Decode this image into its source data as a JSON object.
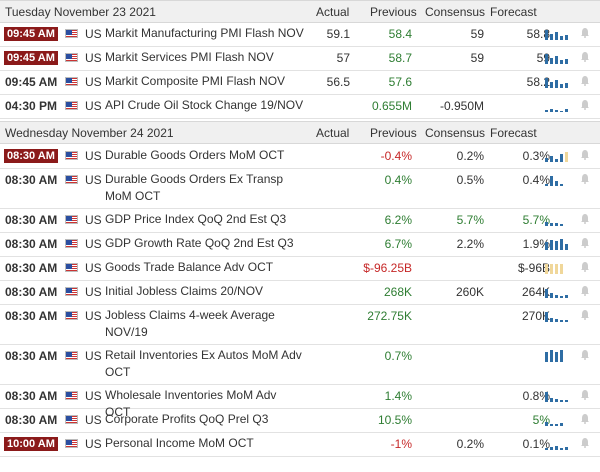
{
  "columns": {
    "actual": "Actual",
    "previous": "Previous",
    "consensus": "Consensus",
    "forecast": "Forecast"
  },
  "days": [
    {
      "date": "Tuesday November 23 2021",
      "rows": [
        {
          "time": "09:45 AM",
          "highlight": true,
          "country": "US",
          "event": "Markit Manufacturing PMI Flash NOV",
          "actual": "59.1",
          "previous": "58.4",
          "previous_color": "green",
          "consensus": "59",
          "forecast": "58.8",
          "icon": "bar-chart-icon"
        },
        {
          "time": "09:45 AM",
          "highlight": true,
          "country": "US",
          "event": "Markit Services PMI Flash NOV",
          "actual": "57",
          "previous": "58.7",
          "previous_color": "green",
          "consensus": "59",
          "forecast": "59",
          "icon": "bar-chart-icon"
        },
        {
          "time": "09:45 AM",
          "highlight": false,
          "country": "US",
          "event": "Markit Composite PMI Flash NOV",
          "actual": "56.5",
          "previous": "57.6",
          "previous_color": "green",
          "consensus": "",
          "forecast": "58.2",
          "icon": "bar-chart-icon"
        },
        {
          "time": "04:30 PM",
          "highlight": false,
          "country": "US",
          "event": "API Crude Oil Stock Change 19/NOV",
          "actual": "",
          "previous": "0.655M",
          "previous_color": "green",
          "consensus": "-0.950M",
          "forecast": "",
          "icon": "bar-chart-icon"
        }
      ]
    },
    {
      "date": "Wednesday November 24 2021",
      "rows": [
        {
          "time": "08:30 AM",
          "highlight": true,
          "country": "US",
          "event": "Durable Goods Orders MoM OCT",
          "actual": "",
          "previous": "-0.4%",
          "previous_color": "red",
          "consensus": "0.2%",
          "forecast": "0.3%",
          "icon": "bar-chart-icon"
        },
        {
          "time": "08:30 AM",
          "highlight": false,
          "country": "US",
          "event": "Durable Goods Orders Ex Transp MoM OCT",
          "actual": "",
          "previous": "0.4%",
          "previous_color": "green",
          "consensus": "0.5%",
          "forecast": "0.4%",
          "icon": "bar-chart-icon"
        },
        {
          "time": "08:30 AM",
          "highlight": false,
          "country": "US",
          "event": "GDP Price Index QoQ 2nd Est Q3",
          "actual": "",
          "previous": "6.2%",
          "previous_color": "green",
          "consensus": "5.7%",
          "consensus_color": "green",
          "forecast": "5.7%",
          "forecast_color": "green",
          "icon": "bar-chart-icon"
        },
        {
          "time": "08:30 AM",
          "highlight": false,
          "country": "US",
          "event": "GDP Growth Rate QoQ 2nd Est Q3",
          "actual": "",
          "previous": "6.7%",
          "previous_color": "green",
          "consensus": "2.2%",
          "forecast": "1.9%",
          "icon": "bar-chart-icon"
        },
        {
          "time": "08:30 AM",
          "highlight": false,
          "country": "US",
          "event": "Goods Trade Balance Adv OCT",
          "actual": "",
          "previous": "$-96.25B",
          "previous_color": "red",
          "consensus": "",
          "forecast": "$-96B",
          "icon": "bar-chart-icon"
        },
        {
          "time": "08:30 AM",
          "highlight": false,
          "country": "US",
          "event": "Initial Jobless Claims 20/NOV",
          "actual": "",
          "previous": "268K",
          "previous_color": "green",
          "consensus": "260K",
          "forecast": "264K",
          "icon": "bar-chart-icon"
        },
        {
          "time": "08:30 AM",
          "highlight": false,
          "country": "US",
          "event": "Jobless Claims 4-week Average NOV/19",
          "actual": "",
          "previous": "272.75K",
          "previous_color": "green",
          "consensus": "",
          "forecast": "270K",
          "icon": "bar-chart-icon"
        },
        {
          "time": "08:30 AM",
          "highlight": false,
          "country": "US",
          "event": "Retail Inventories Ex Autos MoM Adv OCT",
          "actual": "",
          "previous": "0.7%",
          "previous_color": "green",
          "consensus": "",
          "forecast": "",
          "icon": "bar-chart-icon"
        },
        {
          "time": "08:30 AM",
          "highlight": false,
          "country": "US",
          "event": "Wholesale Inventories MoM Adv OCT",
          "actual": "",
          "previous": "1.4%",
          "previous_color": "green",
          "consensus": "",
          "forecast": "0.8%",
          "icon": "bar-chart-icon"
        },
        {
          "time": "08:30 AM",
          "highlight": false,
          "country": "US",
          "event": "Corporate Profits QoQ Prel Q3",
          "actual": "",
          "previous": "10.5%",
          "previous_color": "green",
          "consensus": "",
          "forecast": "5%",
          "forecast_color": "green",
          "icon": "bar-chart-icon"
        },
        {
          "time": "10:00 AM",
          "highlight": true,
          "country": "US",
          "event": "Personal Income MoM OCT",
          "actual": "",
          "previous": "-1%",
          "previous_color": "red",
          "consensus": "0.2%",
          "forecast": "0.1%",
          "icon": "bar-chart-icon"
        }
      ]
    }
  ],
  "colors": {
    "highlight": "#8b1a1a",
    "green": "#2e7d32",
    "red": "#c62828",
    "bar": "#2e6da4"
  }
}
